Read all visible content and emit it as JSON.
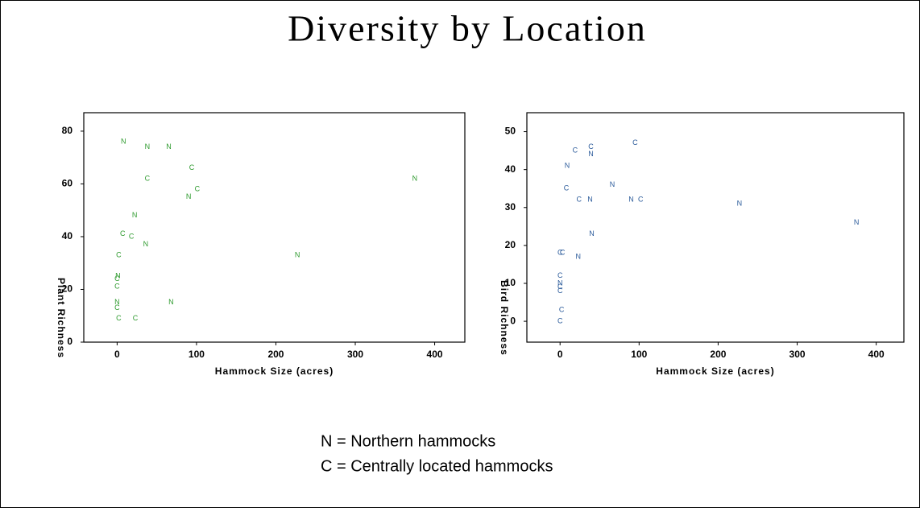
{
  "title": "Diversity by Location",
  "chart_data": [
    {
      "type": "scatter",
      "x_label": "Hammock Size (acres)",
      "y_label": "Plant Richness",
      "xlim": [
        -42,
        438
      ],
      "ylim": [
        0,
        87
      ],
      "xticks": [
        0,
        100,
        200,
        300,
        400
      ],
      "yticks": [
        0,
        20,
        40,
        60,
        80
      ],
      "series": [
        {
          "name": "N",
          "color": "#2e9a2e",
          "x": [
            8,
            38,
            65,
            375,
            90,
            22,
            36,
            227,
            1,
            0,
            68
          ],
          "values": [
            76,
            74,
            74,
            62,
            55,
            48,
            37,
            33,
            25,
            15,
            15
          ]
        },
        {
          "name": "C",
          "color": "#2e9a2e",
          "x": [
            94,
            38,
            101,
            7,
            18,
            2,
            0,
            0,
            0,
            2,
            23
          ],
          "values": [
            66,
            62,
            58,
            41,
            40,
            33,
            24,
            21,
            13,
            9,
            9
          ]
        }
      ]
    },
    {
      "type": "scatter",
      "x_label": "Hammock Size (acres)",
      "y_label": "Bird Richness",
      "xlim": [
        -42,
        435
      ],
      "ylim": [
        -5.5,
        55
      ],
      "xticks": [
        0,
        100,
        200,
        300,
        400
      ],
      "yticks": [
        0,
        10,
        20,
        30,
        40,
        50
      ],
      "series": [
        {
          "name": "N",
          "color": "#2a5a9a",
          "x": [
            39,
            9,
            66,
            38,
            90,
            227,
            375,
            40,
            23,
            0
          ],
          "values": [
            44,
            41,
            36,
            32,
            32,
            31,
            26,
            23,
            17,
            10
          ]
        },
        {
          "name": "C",
          "color": "#2a5a9a",
          "x": [
            19,
            39,
            95,
            8,
            24,
            102,
            0,
            3,
            0,
            0,
            0,
            2,
            0
          ],
          "values": [
            45,
            46,
            47,
            35,
            32,
            32,
            18,
            18,
            12,
            9,
            8,
            3,
            0
          ]
        }
      ]
    }
  ],
  "notes": [
    "N = Northern hammocks",
    "C = Centrally located hammocks"
  ]
}
